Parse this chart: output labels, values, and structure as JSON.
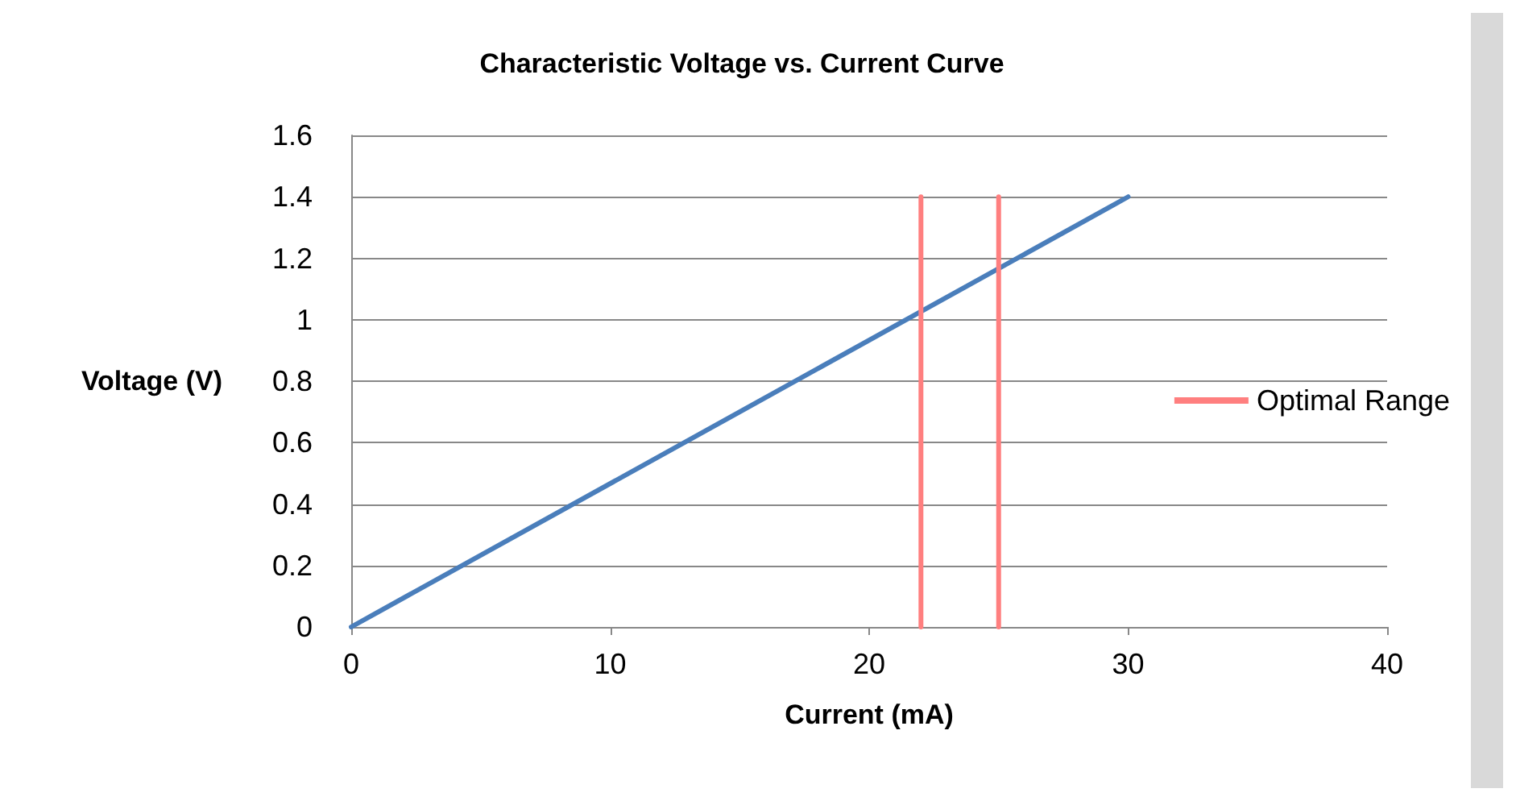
{
  "chart_data": {
    "type": "line",
    "title": "Characteristic Voltage vs. Current Curve",
    "xlabel": "Current (mA)",
    "ylabel": "Voltage (V)",
    "xlim": [
      0,
      40
    ],
    "xticks": [
      0,
      10,
      20,
      30,
      40
    ],
    "ylim": [
      0,
      1.6
    ],
    "yticks": [
      0,
      0.2,
      0.4,
      0.6,
      0.8,
      1,
      1.2,
      1.4,
      1.6
    ],
    "series": [
      {
        "color": "#4a7ebb",
        "x": [
          0,
          30
        ],
        "values": [
          0,
          1.4
        ]
      },
      {
        "name": "Optimal Range",
        "color": "#ff7f7f",
        "x": [
          22,
          22
        ],
        "values": [
          0,
          1.4
        ]
      },
      {
        "color": "#ff7f7f",
        "x": [
          25,
          25
        ],
        "values": [
          0,
          1.4
        ]
      }
    ],
    "grid": "y",
    "legend": "right",
    "marker": "none",
    "line_style": "solid"
  }
}
